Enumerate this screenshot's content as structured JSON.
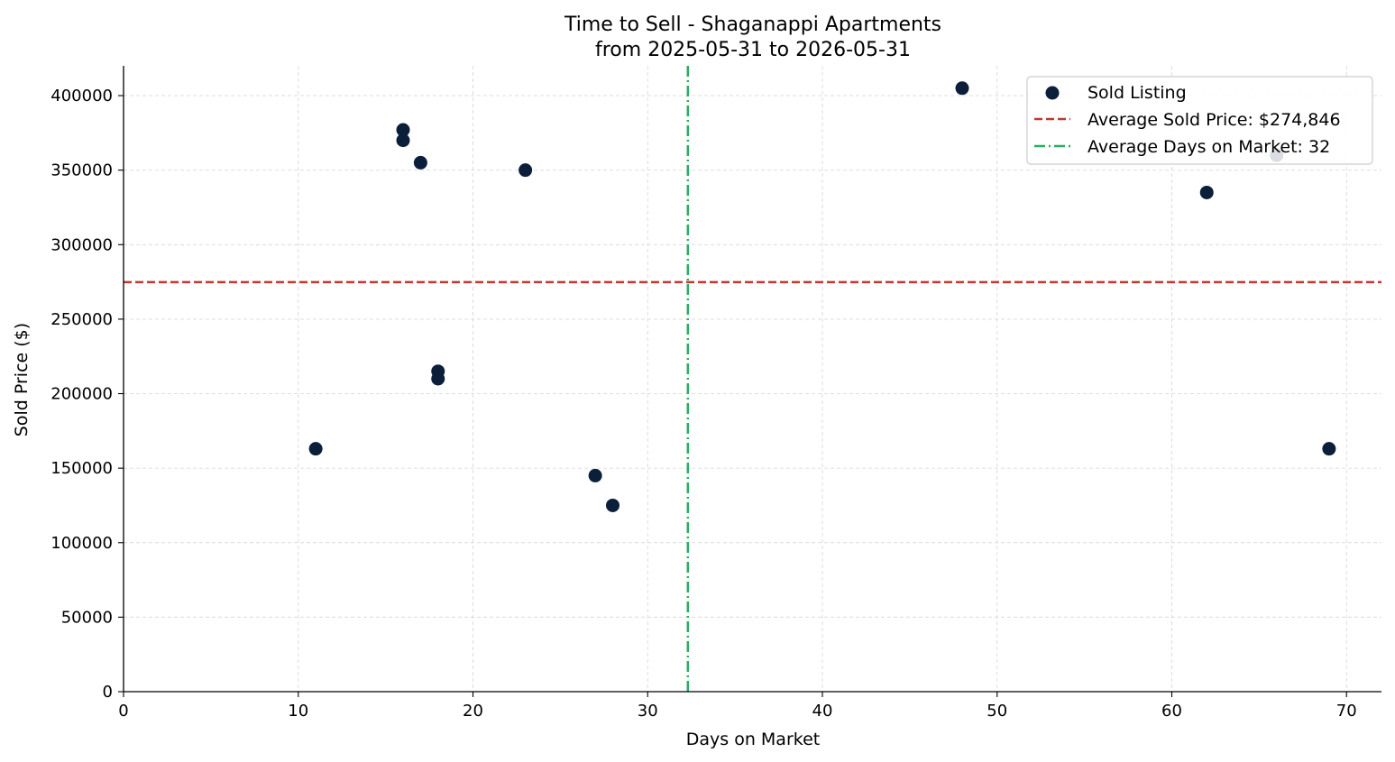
{
  "chart_data": {
    "type": "scatter",
    "title": "Time to Sell - Shaganappi Apartments",
    "subtitle": "from 2025-05-31 to 2026-05-31",
    "xlabel": "Days on Market",
    "ylabel": "Sold Price ($)",
    "xlim": [
      0,
      72
    ],
    "ylim": [
      0,
      420000
    ],
    "xticks": [
      0,
      10,
      20,
      30,
      40,
      50,
      60,
      70
    ],
    "yticks": [
      0,
      50000,
      100000,
      150000,
      200000,
      250000,
      300000,
      350000,
      400000
    ],
    "grid": true,
    "legend_position": "top-right",
    "series": [
      {
        "name": "Sold Listing",
        "color": "#0b1f3a",
        "points": [
          {
            "x": 11,
            "y": 163000
          },
          {
            "x": 16,
            "y": 377000
          },
          {
            "x": 16,
            "y": 370000
          },
          {
            "x": 17,
            "y": 355000
          },
          {
            "x": 18,
            "y": 215000
          },
          {
            "x": 18,
            "y": 210000
          },
          {
            "x": 23,
            "y": 350000
          },
          {
            "x": 27,
            "y": 145000
          },
          {
            "x": 28,
            "y": 125000
          },
          {
            "x": 48,
            "y": 405000
          },
          {
            "x": 62,
            "y": 335000
          },
          {
            "x": 66,
            "y": 360000
          },
          {
            "x": 69,
            "y": 163000
          }
        ]
      }
    ],
    "reference_lines": {
      "average_price": {
        "label": "Average Sold Price: $274,846",
        "value": 274846,
        "orientation": "horizontal",
        "color": "#c0392b",
        "style": "dashed"
      },
      "average_days": {
        "label": "Average Days on Market: 32",
        "value": 32.3,
        "orientation": "vertical",
        "color": "#27ae60",
        "style": "dash-dot"
      }
    }
  }
}
